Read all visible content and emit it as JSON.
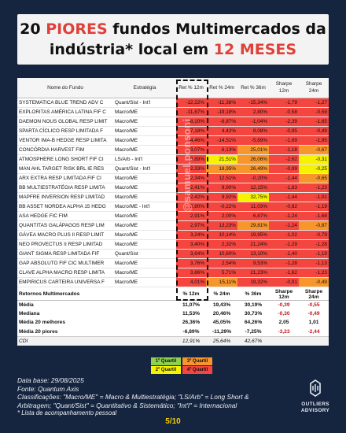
{
  "title": {
    "line1": [
      {
        "text": "20 ",
        "red": false
      },
      {
        "text": "PIORES",
        "red": true
      },
      {
        "text": " fundos Multimercados da",
        "red": false
      }
    ],
    "line2": [
      {
        "text": "indústria",
        "red": false
      },
      {
        "text": "* local em ",
        "red": false
      },
      {
        "text": "12 MESES",
        "red": true
      }
    ]
  },
  "colors": {
    "red": "#f5453f",
    "orange": "#f7962b",
    "yellow": "#f7f300",
    "green": "#8fd14f",
    "background": "#16253f",
    "accent": "#e0403a",
    "page": "#f5d000"
  },
  "table": {
    "headers": {
      "name": "Nome do Fundo",
      "cat": "Estratégia",
      "r12": "Ret % 12m",
      "r24": "Ret % 24m",
      "r36": "Ret % 36m",
      "sh_top": "Sharpe",
      "sh12": "12m",
      "sh24_top": "Sharpe",
      "sh24": "24m"
    },
    "rows": [
      {
        "name": "SYSTEMATICA BLUE TREND ADV C",
        "cat": "Quant/Sist - Int'l",
        "r12": "-12,22%",
        "r24": "-11,38%",
        "r36": "-15,34%",
        "s12": "-1,79",
        "s24": "-1,27",
        "c": [
          "red",
          "red",
          "red",
          "red",
          "red"
        ]
      },
      {
        "name": "EXPLORITAS AMÉRICA LATINA FIF C",
        "cat": "Macro/ME",
        "r12": "-11,87%",
        "r24": "-19,18%",
        "r36": "2,80%",
        "s12": "-0,58",
        "s24": "-0,59",
        "c": [
          "red",
          "red",
          "red",
          "red",
          "red"
        ]
      },
      {
        "name": "DAEMON NOUS GLOBAL RESP LIMIT",
        "cat": "Macro/ME",
        "r12": "-8,10%",
        "r24": "-6,87%",
        "r36": "-1,04%",
        "s12": "-2,39",
        "s24": "-1,65",
        "c": [
          "red",
          "red",
          "red",
          "red",
          "red"
        ]
      },
      {
        "name": "SPARTA CÍCLICO RESP LIMITADA F",
        "cat": "Macro/ME",
        "r12": "-7,18%",
        "r24": "4,42%",
        "r36": "8,08%",
        "s12": "-0,95",
        "s24": "-0,49",
        "c": [
          "red",
          "red",
          "red",
          "red",
          "red"
        ]
      },
      {
        "name": "VENTOR IMA-B HEDGE RESP LIMITA",
        "cat": "Macro/ME",
        "r12": "-4,46%",
        "r24": "-14,51%",
        "r36": "-5,69%",
        "s12": "-1,69",
        "s24": "-1,95",
        "c": [
          "red",
          "red",
          "red",
          "red",
          "red"
        ]
      },
      {
        "name": "CONCÓRDIA HARVEST FIM",
        "cat": "Macro/ME",
        "r12": "-3,07%",
        "r24": "6,13%",
        "r36": "25,01%",
        "s12": "-1,18",
        "s24": "-0,67",
        "c": [
          "red",
          "red",
          "orange",
          "red",
          "orange"
        ]
      },
      {
        "name": "ATMOSPHERE LONG SHORT FIF CI",
        "cat": "LS/Arb - Int'l",
        "r12": "0,89%",
        "r24": "21,51%",
        "r36": "26,06%",
        "s12": "-2,62",
        "s24": "-0,31",
        "c": [
          "red",
          "yellow",
          "orange",
          "red",
          "yellow"
        ]
      },
      {
        "name": "MAN AHL TARGET RISK BRL IE RES",
        "cat": "Quant/Sist - Int'l",
        "r12": "2,33%",
        "r24": "18,95%",
        "r36": "26,49%",
        "s12": "-0,99",
        "s24": "-0,25",
        "c": [
          "red",
          "orange",
          "orange",
          "red",
          "yellow"
        ]
      },
      {
        "name": "ARX EXTRA RESP LIMITADA FIF CI",
        "cat": "Macro/ME",
        "r12": "2,34%",
        "r24": "12,51%",
        "r36": "-0,20%",
        "s12": "-1,44",
        "s24": "-0,65",
        "c": [
          "red",
          "red",
          "red",
          "red",
          "orange"
        ]
      },
      {
        "name": "BB MULTIESTRATÉGIA RESP LIMITA",
        "cat": "Macro/ME",
        "r12": "2,41%",
        "r24": "9,90%",
        "r36": "12,15%",
        "s12": "-1,83",
        "s24": "-1,23",
        "c": [
          "red",
          "red",
          "red",
          "red",
          "red"
        ]
      },
      {
        "name": "MAPFRE INVERSION RESP LIMITAD",
        "cat": "Macro/ME",
        "r12": "2,42%",
        "r24": "9,92%",
        "r36": "32,75%",
        "s12": "-1,44",
        "s24": "-1,01",
        "c": [
          "red",
          "red",
          "yellow",
          "red",
          "red"
        ]
      },
      {
        "name": "BB ASSET NORDEA ALPHA 15 HEDG",
        "cat": "Macro/ME - Int'l",
        "r12": "2,80%",
        "r24": "-0,22%",
        "r36": "11,03%",
        "s12": "-0,82",
        "s24": "-1,19",
        "c": [
          "red",
          "red",
          "red",
          "red",
          "red"
        ]
      },
      {
        "name": "ASA HEDGE FIC FIM",
        "cat": "Macro/ME",
        "r12": "2,91%",
        "r24": "2,00%",
        "r36": "6,87%",
        "s12": "-1,24",
        "s24": "-1,68",
        "c": [
          "red",
          "red",
          "red",
          "red",
          "red"
        ]
      },
      {
        "name": "QUANTITAS GALÁPAGOS RESP LIM",
        "cat": "Macro/ME",
        "r12": "2,97%",
        "r24": "13,23%",
        "r36": "29,81%",
        "s12": "-1,24",
        "s24": "-0,87",
        "c": [
          "red",
          "red",
          "orange",
          "red",
          "orange"
        ]
      },
      {
        "name": "GÁVEA MACRO PLUS II RESP LIMIT",
        "cat": "Macro/ME",
        "r12": "3,24%",
        "r24": "10,14%",
        "r36": "19,95%",
        "s12": "-1,02",
        "s24": "-0,79",
        "c": [
          "red",
          "red",
          "red",
          "red",
          "red"
        ]
      },
      {
        "name": "NEO PROVECTUS II RESP LIMITAD",
        "cat": "Macro/ME",
        "r12": "3,40%",
        "r24": "2,32%",
        "r36": "21,24%",
        "s12": "-1,29",
        "s24": "-1,28",
        "c": [
          "red",
          "red",
          "red",
          "red",
          "red"
        ]
      },
      {
        "name": "GIANT SIGMA RESP LIMITADA FIF",
        "cat": "Quant/Sist",
        "r12": "3,64%",
        "r24": "10,60%",
        "r36": "13,10%",
        "s12": "-1,40",
        "s24": "-1,19",
        "c": [
          "red",
          "red",
          "red",
          "red",
          "red"
        ]
      },
      {
        "name": "GAP ABSOLUTO FIF CIC MULTIMER",
        "cat": "Macro/ME",
        "r12": "3,76%",
        "r24": "2,54%",
        "r36": "9,53%",
        "s12": "-1,28",
        "s24": "-1,13",
        "c": [
          "red",
          "red",
          "red",
          "red",
          "red"
        ]
      },
      {
        "name": "CLAVE ALPHA MACRO RESP LIMITA",
        "cat": "Macro/ME",
        "r12": "3,86%",
        "r24": "5,71%",
        "r36": "21,23%",
        "s12": "-1,62",
        "s24": "-1,23",
        "c": [
          "red",
          "red",
          "red",
          "red",
          "red"
        ]
      },
      {
        "name": "EMPIRICUS CARTEIRA UNIVERSA F",
        "cat": "Macro/ME",
        "r12": "4,01%",
        "r24": "15,11%",
        "r36": "19,32%",
        "s12": "-0,91",
        "s24": "-0,49",
        "c": [
          "red",
          "orange",
          "red",
          "red",
          "orange"
        ]
      }
    ]
  },
  "stats": {
    "header": {
      "label": "Retornos Multimercados",
      "r12": "% 12m",
      "r24": "% 24m",
      "r36": "% 36m",
      "sh12_top": "Sharpe",
      "sh12": "12m",
      "sh24_top": "Sharpe",
      "sh24": "24m"
    },
    "rows": [
      {
        "label": "Média",
        "r12": "11,07%",
        "r24": "19,43%",
        "r36": "30,19%",
        "s12": "-0,39",
        "s24": "-0,55",
        "bold": true
      },
      {
        "label": "Mediana",
        "r12": "11,53%",
        "r24": "20,46%",
        "r36": "30,73%",
        "s12": "-0,30",
        "s24": "-0,49",
        "bold": true
      },
      {
        "label": "Média 20 melhores",
        "r12": "26,36%",
        "r24": "45,05%",
        "r36": "64,26%",
        "s12": "2,05",
        "s24": "1,01",
        "bold": true
      },
      {
        "label": "Média 20 piores",
        "r12": "-6,89%",
        "r24": "-11,29%",
        "r36": "-7,25%",
        "s12": "-3,23",
        "s24": "-2,44",
        "bold": true
      },
      {
        "label": "CDI",
        "r12": "12,91%",
        "r24": "25,64%",
        "r36": "42,67%",
        "s12": "",
        "s24": "",
        "bold": false,
        "cdi": true
      }
    ]
  },
  "legend": {
    "q1": "1º Quartil",
    "q2": "2º Quartil",
    "q3": "3º Quartil",
    "q4": "4º Quartil"
  },
  "watermark": "@samuel.ponsoni",
  "footer": {
    "l1": "Data base: 29/08/2025",
    "l2": "Fonte: Quantum Axis",
    "l3": "Classificações: \"Macro/ME\" = Macro & Multiestratégia; \"LS/Arb\" = Long Short &",
    "l4": "Arbitragem; \"Quant/Sist\" = Quantitativo & Sistemático; \"Int'l\" = Internacional",
    "l5": "* Lista de acompanhamento pessoal"
  },
  "logo": {
    "line1": "OUTLIERS",
    "line2": "ADVISORY"
  },
  "page": "5/10"
}
